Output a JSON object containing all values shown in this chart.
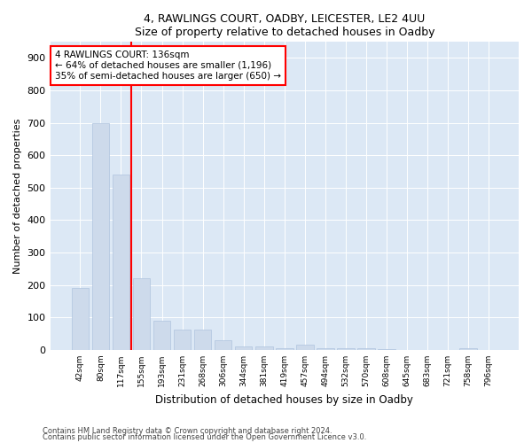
{
  "title": "4, RAWLINGS COURT, OADBY, LEICESTER, LE2 4UU",
  "subtitle": "Size of property relative to detached houses in Oadby",
  "xlabel": "Distribution of detached houses by size in Oadby",
  "ylabel": "Number of detached properties",
  "categories": [
    "42sqm",
    "80sqm",
    "117sqm",
    "155sqm",
    "193sqm",
    "231sqm",
    "268sqm",
    "306sqm",
    "344sqm",
    "381sqm",
    "419sqm",
    "457sqm",
    "494sqm",
    "532sqm",
    "570sqm",
    "608sqm",
    "645sqm",
    "683sqm",
    "721sqm",
    "758sqm",
    "796sqm"
  ],
  "values": [
    190,
    700,
    540,
    220,
    90,
    62,
    62,
    30,
    12,
    12,
    5,
    15,
    5,
    5,
    5,
    2,
    0,
    0,
    0,
    5,
    0
  ],
  "bar_color": "#cddaeb",
  "bar_edge_color": "#b0c4de",
  "vline_color": "red",
  "annotation_text": "4 RAWLINGS COURT: 136sqm\n← 64% of detached houses are smaller (1,196)\n35% of semi-detached houses are larger (650) →",
  "annotation_box_facecolor": "white",
  "annotation_box_edgecolor": "red",
  "ylim": [
    0,
    950
  ],
  "yticks": [
    0,
    100,
    200,
    300,
    400,
    500,
    600,
    700,
    800,
    900
  ],
  "fig_facecolor": "#ffffff",
  "plot_facecolor": "#dce8f5",
  "grid_color": "#ffffff",
  "footer_line1": "Contains HM Land Registry data © Crown copyright and database right 2024.",
  "footer_line2": "Contains public sector information licensed under the Open Government Licence v3.0."
}
